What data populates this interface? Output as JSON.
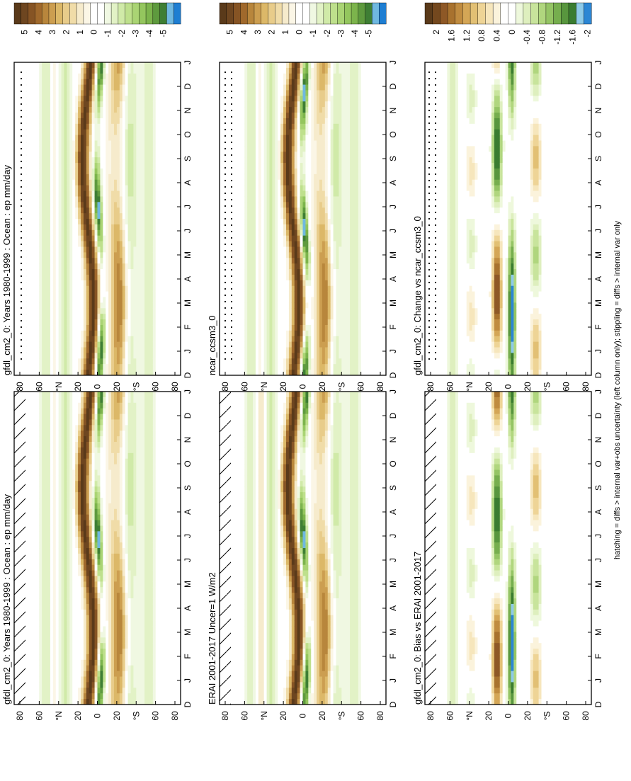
{
  "footnote": "hatching = diffs > internal var+obs uncertainty (left column only); stippling = diffs > internal var only",
  "months_row": [
    "D",
    "J",
    "F",
    "M",
    "A",
    "M",
    "J",
    "J",
    "A",
    "S",
    "O",
    "N",
    "D",
    "J"
  ],
  "lat_ticks": [
    "80",
    "60",
    "°N",
    "20",
    "0",
    "20",
    "°S",
    "60",
    "80"
  ],
  "colorbar_abs": {
    "labels": [
      "5",
      "4",
      "3",
      "2",
      "1",
      "0",
      "-1",
      "-2",
      "-3",
      "-4",
      "-5"
    ],
    "colors": [
      "#5a3a1a",
      "#6e4620",
      "#865424",
      "#a0692c",
      "#b8863c",
      "#cc9e50",
      "#dcb868",
      "#e8cc8a",
      "#f0dca8",
      "#f6ebcc",
      "#fbf6e6",
      "#ffffff",
      "#ffffff",
      "#f0f8e2",
      "#e2f2c6",
      "#d0eaa8",
      "#bee08c",
      "#aad474",
      "#94c65e",
      "#7cb44c",
      "#5e9a3e",
      "#3e7e34",
      "#6fb8e0",
      "#1e7ed2"
    ]
  },
  "colorbar_diff": {
    "labels": [
      "2",
      "1.6",
      "1.2",
      "0.8",
      "0.4",
      "0",
      "-0.4",
      "-0.8",
      "-1.2",
      "-1.6",
      "-2"
    ],
    "colors": [
      "#5a3a1a",
      "#74481e",
      "#8e5826",
      "#a8722e",
      "#c08c40",
      "#d4a656",
      "#e2c074",
      "#eed496",
      "#f6e6bc",
      "#fbf3dc",
      "#ffffff",
      "#ffffff",
      "#eef8dc",
      "#deefbe",
      "#c8e49c",
      "#b0d67e",
      "#94c464",
      "#76ae4e",
      "#58963e",
      "#3a7c30",
      "#8ecae8",
      "#2c86d4"
    ]
  },
  "chart_data": [
    {
      "type": "heatmap",
      "title": "gfdl_cm2_0: Years 1980-1999 : Ocean : ep mm/day",
      "x_axis": "month",
      "y_axis": "latitude",
      "ylim": [
        -90,
        90
      ],
      "x": [
        "D",
        "J",
        "F",
        "M",
        "A",
        "M",
        "J",
        "J",
        "A",
        "S",
        "O",
        "N",
        "D",
        "J"
      ],
      "description_points": {
        "itcz_north_max_mm_day": 5,
        "subtropical_min_mm_day": -5
      },
      "hatching": "north polar region",
      "stippling": "none"
    },
    {
      "type": "heatmap",
      "title": "gfdl_cm2_0: Years 1980-1999 : Ocean : ep mm/day",
      "x_axis": "month",
      "y_axis": "latitude",
      "ylim": [
        -90,
        90
      ],
      "x": [
        "D",
        "J",
        "F",
        "M",
        "A",
        "M",
        "J",
        "J",
        "A",
        "S",
        "O",
        "N",
        "D",
        "J"
      ],
      "stippling": "north polar region"
    },
    {
      "type": "heatmap",
      "title": "ERAI 2001-2017 Uncer=1 W/m2",
      "x_axis": "month",
      "y_axis": "latitude",
      "ylim": [
        -90,
        90
      ],
      "x": [
        "D",
        "J",
        "F",
        "M",
        "A",
        "M",
        "J",
        "J",
        "A",
        "S",
        "O",
        "N",
        "D",
        "J"
      ]
    },
    {
      "type": "heatmap",
      "title": "ncar_ccsm3_0",
      "x_axis": "month",
      "y_axis": "latitude",
      "ylim": [
        -90,
        90
      ],
      "x": [
        "D",
        "J",
        "F",
        "M",
        "A",
        "M",
        "J",
        "J",
        "A",
        "S",
        "O",
        "N",
        "D",
        "J"
      ]
    },
    {
      "type": "heatmap",
      "title": "gfdl_cm2_0: Bias vs ERAI 2001-2017",
      "x_axis": "month",
      "y_axis": "latitude",
      "ylim": [
        -90,
        90
      ],
      "x": [
        "D",
        "J",
        "F",
        "M",
        "A",
        "M",
        "J",
        "J",
        "A",
        "S",
        "O",
        "N",
        "D",
        "J"
      ]
    },
    {
      "type": "heatmap",
      "title": "gfdl_cm2_0: Change vs ncar_ccsm3_0",
      "x_axis": "month",
      "y_axis": "latitude",
      "ylim": [
        -90,
        90
      ],
      "x": [
        "D",
        "J",
        "F",
        "M",
        "A",
        "M",
        "J",
        "J",
        "A",
        "S",
        "O",
        "N",
        "D",
        "J"
      ]
    }
  ],
  "panels": [
    {
      "title": "gfdl_cm2_0: Years 1980-1999 : Ocean : ep mm/day",
      "mode": "abs",
      "variant": 0,
      "hatch": true,
      "stipple": false
    },
    {
      "title": "gfdl_cm2_0: Years 1980-1999 : Ocean : ep mm/day",
      "mode": "abs",
      "variant": 0,
      "hatch": false,
      "stipple": true
    },
    {
      "title": "ERAI 2001-2017 Uncer=1 W/m2",
      "mode": "abs",
      "variant": 1,
      "hatch": true,
      "stipple": false
    },
    {
      "title": "ncar_ccsm3_0",
      "mode": "abs",
      "variant": 2,
      "hatch": false,
      "stipple": true
    },
    {
      "title": "gfdl_cm2_0: Bias vs ERAI 2001-2017",
      "mode": "diff",
      "variant": 3,
      "hatch": true,
      "stipple": false
    },
    {
      "title": "gfdl_cm2_0: Change vs ncar_ccsm3_0",
      "mode": "diff",
      "variant": 4,
      "hatch": false,
      "stipple": true
    }
  ]
}
